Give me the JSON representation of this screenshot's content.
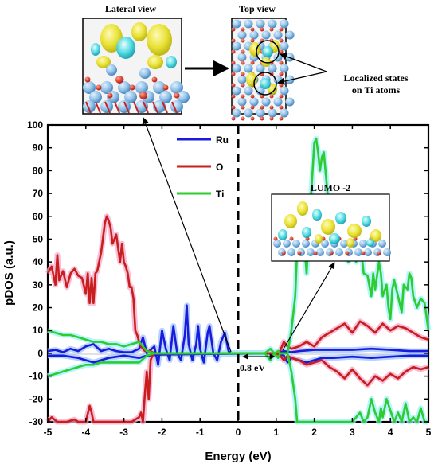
{
  "chart_data": {
    "type": "line",
    "xlabel": "Energy (eV)",
    "ylabel": "pDOS (a.u.)",
    "xlim": [
      -5,
      5
    ],
    "ylim": [
      -30,
      100
    ],
    "xticks": [
      -5,
      -4,
      -3,
      -2,
      -1,
      0,
      1,
      2,
      3,
      4,
      5
    ],
    "yticks": [
      100,
      90,
      80,
      70,
      60,
      50,
      40,
      30,
      20,
      10,
      0,
      -10,
      -20,
      -30
    ],
    "grid": false,
    "legend_position": "top-left",
    "series": [
      {
        "name": "Ru",
        "color": "#1a1adb",
        "spin_up": [
          [
            -5,
            1
          ],
          [
            -4.8,
            1.5
          ],
          [
            -4.6,
            0.5
          ],
          [
            -4.4,
            2
          ],
          [
            -4.2,
            1
          ],
          [
            -4,
            3
          ],
          [
            -3.8,
            4
          ],
          [
            -3.6,
            1
          ],
          [
            -3.4,
            2
          ],
          [
            -3.2,
            1
          ],
          [
            -3,
            0.5
          ],
          [
            -2.8,
            0.5
          ],
          [
            -2.6,
            2
          ],
          [
            -2.5,
            7
          ],
          [
            -2.4,
            0
          ],
          [
            -2.2,
            3
          ],
          [
            -2.1,
            -5
          ],
          [
            -2,
            10
          ],
          [
            -1.9,
            2
          ],
          [
            -1.8,
            -3
          ],
          [
            -1.7,
            12
          ],
          [
            -1.6,
            0
          ],
          [
            -1.5,
            -3
          ],
          [
            -1.4,
            8
          ],
          [
            -1.35,
            21
          ],
          [
            -1.3,
            4
          ],
          [
            -1.2,
            -3
          ],
          [
            -1.1,
            4
          ],
          [
            -1.05,
            12
          ],
          [
            -1,
            2
          ],
          [
            -0.9,
            -4
          ],
          [
            -0.8,
            9
          ],
          [
            -0.75,
            12
          ],
          [
            -0.65,
            0
          ],
          [
            -0.55,
            -3
          ],
          [
            -0.45,
            5
          ],
          [
            -0.35,
            9
          ],
          [
            -0.25,
            1
          ],
          [
            -0.2,
            0
          ],
          [
            1,
            0
          ],
          [
            1.2,
            1
          ],
          [
            1.4,
            0.5
          ],
          [
            1.6,
            1
          ],
          [
            2,
            1.5
          ],
          [
            2.5,
            1.5
          ],
          [
            3,
            1.5
          ],
          [
            3.5,
            2
          ],
          [
            4,
            1.5
          ],
          [
            4.5,
            1
          ],
          [
            5,
            1
          ]
        ],
        "spin_down": [
          [
            -5,
            -1
          ],
          [
            -4.6,
            -1
          ],
          [
            -4.2,
            -2
          ],
          [
            -3.8,
            -4
          ],
          [
            -3.4,
            -2
          ],
          [
            -3,
            -1
          ],
          [
            -2.6,
            -2
          ],
          [
            -2.4,
            -1
          ],
          [
            -2,
            -0.5
          ],
          [
            1,
            0
          ],
          [
            1.2,
            -1
          ],
          [
            1.3,
            -4
          ],
          [
            1.4,
            -2
          ],
          [
            1.6,
            -3
          ],
          [
            1.8,
            -4
          ],
          [
            2,
            -3
          ],
          [
            2.2,
            -2
          ],
          [
            2.5,
            -2
          ],
          [
            3,
            -1.5
          ],
          [
            3.5,
            -2
          ],
          [
            4,
            -1.5
          ],
          [
            4.5,
            -1
          ],
          [
            5,
            -1
          ]
        ]
      },
      {
        "name": "O",
        "color": "#c81e1e",
        "spin_up": [
          [
            -5,
            35
          ],
          [
            -4.9,
            38
          ],
          [
            -4.8,
            30
          ],
          [
            -4.75,
            43
          ],
          [
            -4.7,
            32
          ],
          [
            -4.6,
            36
          ],
          [
            -4.5,
            29
          ],
          [
            -4.4,
            35
          ],
          [
            -4.3,
            37
          ],
          [
            -4.2,
            34
          ],
          [
            -4.1,
            33
          ],
          [
            -4,
            26
          ],
          [
            -3.95,
            35
          ],
          [
            -3.9,
            22
          ],
          [
            -3.85,
            33
          ],
          [
            -3.8,
            22
          ],
          [
            -3.75,
            35
          ],
          [
            -3.7,
            36
          ],
          [
            -3.6,
            44
          ],
          [
            -3.5,
            57
          ],
          [
            -3.45,
            60
          ],
          [
            -3.4,
            58
          ],
          [
            -3.35,
            55
          ],
          [
            -3.3,
            48
          ],
          [
            -3.2,
            52
          ],
          [
            -3.1,
            40
          ],
          [
            -3.05,
            48
          ],
          [
            -3,
            40
          ],
          [
            -2.95,
            38
          ],
          [
            -2.9,
            35
          ],
          [
            -2.85,
            29
          ],
          [
            -2.8,
            29
          ],
          [
            -2.75,
            24
          ],
          [
            -2.7,
            10
          ],
          [
            -2.65,
            8
          ],
          [
            -2.6,
            5
          ],
          [
            -2.55,
            3
          ],
          [
            -2.45,
            1
          ],
          [
            -2.3,
            1
          ],
          [
            -2.2,
            0
          ],
          [
            1,
            0
          ],
          [
            1.1,
            1
          ],
          [
            1.2,
            5
          ],
          [
            1.3,
            3
          ],
          [
            1.4,
            2
          ],
          [
            1.6,
            3
          ],
          [
            1.8,
            5
          ],
          [
            2,
            3
          ],
          [
            2.2,
            7
          ],
          [
            2.4,
            9
          ],
          [
            2.6,
            11
          ],
          [
            2.8,
            13
          ],
          [
            3,
            9
          ],
          [
            3.2,
            14
          ],
          [
            3.4,
            12
          ],
          [
            3.6,
            9
          ],
          [
            3.8,
            13
          ],
          [
            4,
            10
          ],
          [
            4.2,
            12
          ],
          [
            4.4,
            11
          ],
          [
            4.6,
            9
          ],
          [
            4.8,
            7
          ],
          [
            5,
            6
          ]
        ],
        "spin_down": [
          [
            -5,
            -30
          ],
          [
            -4.9,
            -28
          ],
          [
            -4.75,
            -30
          ],
          [
            -4.5,
            -30
          ],
          [
            -4.3,
            -29
          ],
          [
            -4.2,
            -30
          ],
          [
            -4,
            -30
          ],
          [
            -3.9,
            -23
          ],
          [
            -3.85,
            -26
          ],
          [
            -3.8,
            -30
          ],
          [
            -3.5,
            -30
          ],
          [
            -3.2,
            -30
          ],
          [
            -3,
            -30
          ],
          [
            -2.8,
            -30
          ],
          [
            -2.6,
            -28
          ],
          [
            -2.55,
            -26
          ],
          [
            -2.5,
            -30
          ],
          [
            -2.45,
            -18
          ],
          [
            -2.4,
            -8
          ],
          [
            -2.35,
            -20
          ],
          [
            -2.3,
            -3
          ],
          [
            -2.25,
            -1
          ],
          [
            -2.2,
            0
          ],
          [
            1,
            0
          ],
          [
            1.1,
            -1
          ],
          [
            1.2,
            -3
          ],
          [
            1.3,
            -1
          ],
          [
            1.4,
            -2
          ],
          [
            1.6,
            -3
          ],
          [
            1.8,
            -5
          ],
          [
            2,
            -4
          ],
          [
            2.2,
            -3
          ],
          [
            2.4,
            -6
          ],
          [
            2.6,
            -8
          ],
          [
            2.8,
            -11
          ],
          [
            3,
            -7
          ],
          [
            3.2,
            -11
          ],
          [
            3.4,
            -14
          ],
          [
            3.6,
            -10
          ],
          [
            3.8,
            -12
          ],
          [
            4,
            -9
          ],
          [
            4.2,
            -11
          ],
          [
            4.4,
            -8
          ],
          [
            4.6,
            -6
          ],
          [
            4.8,
            -7
          ],
          [
            5,
            -6
          ]
        ]
      },
      {
        "name": "Ti",
        "color": "#2ecc2e",
        "spin_up": [
          [
            -5,
            10
          ],
          [
            -4.8,
            9
          ],
          [
            -4.6,
            8
          ],
          [
            -4.4,
            8
          ],
          [
            -4.2,
            7
          ],
          [
            -4,
            6
          ],
          [
            -3.8,
            5
          ],
          [
            -3.6,
            5
          ],
          [
            -3.4,
            4
          ],
          [
            -3.2,
            4
          ],
          [
            -3,
            3
          ],
          [
            -2.8,
            4
          ],
          [
            -2.6,
            5
          ],
          [
            -2.4,
            1
          ],
          [
            -2.2,
            0
          ],
          [
            -0.5,
            0
          ],
          [
            0,
            0
          ],
          [
            0.7,
            0
          ],
          [
            0.85,
            2
          ],
          [
            0.95,
            0
          ],
          [
            1.05,
            1
          ],
          [
            1.1,
            0
          ],
          [
            1.3,
            0
          ],
          [
            1.4,
            10
          ],
          [
            1.5,
            25
          ],
          [
            1.55,
            45
          ],
          [
            1.6,
            55
          ],
          [
            1.65,
            42
          ],
          [
            1.7,
            55
          ],
          [
            1.8,
            35
          ],
          [
            1.85,
            50
          ],
          [
            1.9,
            65
          ],
          [
            1.95,
            78
          ],
          [
            2,
            92
          ],
          [
            2.05,
            94
          ],
          [
            2.1,
            88
          ],
          [
            2.15,
            80
          ],
          [
            2.2,
            86
          ],
          [
            2.25,
            88
          ],
          [
            2.35,
            70
          ],
          [
            2.45,
            52
          ],
          [
            2.5,
            62
          ],
          [
            2.6,
            48
          ],
          [
            2.7,
            55
          ],
          [
            2.8,
            42
          ],
          [
            2.9,
            40
          ],
          [
            3,
            58
          ],
          [
            3.05,
            45
          ],
          [
            3.1,
            40
          ],
          [
            3.2,
            50
          ],
          [
            3.3,
            35
          ],
          [
            3.4,
            34
          ],
          [
            3.5,
            25
          ],
          [
            3.55,
            35
          ],
          [
            3.6,
            28
          ],
          [
            3.7,
            40
          ],
          [
            3.75,
            35
          ],
          [
            3.8,
            25
          ],
          [
            3.9,
            30
          ],
          [
            3.95,
            20
          ],
          [
            4,
            15
          ],
          [
            4.05,
            28
          ],
          [
            4.1,
            32
          ],
          [
            4.2,
            25
          ],
          [
            4.3,
            18
          ],
          [
            4.35,
            30
          ],
          [
            4.45,
            28
          ],
          [
            4.5,
            35
          ],
          [
            4.55,
            33
          ],
          [
            4.6,
            25
          ],
          [
            4.7,
            20
          ],
          [
            4.8,
            24
          ],
          [
            4.9,
            22
          ],
          [
            5,
            10
          ]
        ],
        "spin_down": [
          [
            -5,
            -10
          ],
          [
            -4.8,
            -9
          ],
          [
            -4.6,
            -8
          ],
          [
            -4.4,
            -7
          ],
          [
            -4.2,
            -6
          ],
          [
            -4,
            -5
          ],
          [
            -3.8,
            -5
          ],
          [
            -3.6,
            -4
          ],
          [
            -3.4,
            -4
          ],
          [
            -3.2,
            -4
          ],
          [
            -3,
            -4
          ],
          [
            -2.8,
            -4
          ],
          [
            -2.6,
            -4
          ],
          [
            -2.4,
            -1
          ],
          [
            -2.2,
            0
          ],
          [
            -0.5,
            0
          ],
          [
            0,
            0
          ],
          [
            0.7,
            0
          ],
          [
            0.85,
            -3
          ],
          [
            0.95,
            0
          ],
          [
            1.05,
            -2
          ],
          [
            1.1,
            0
          ],
          [
            1.3,
            0
          ],
          [
            1.4,
            -8
          ],
          [
            1.5,
            -20
          ],
          [
            1.55,
            -30
          ],
          [
            1.6,
            -30
          ],
          [
            1.8,
            -30
          ],
          [
            2,
            -30
          ],
          [
            2.2,
            -30
          ],
          [
            2.4,
            -30
          ],
          [
            2.6,
            -30
          ],
          [
            2.8,
            -30
          ],
          [
            3,
            -30
          ],
          [
            3.1,
            -28
          ],
          [
            3.2,
            -26
          ],
          [
            3.3,
            -30
          ],
          [
            3.4,
            -28
          ],
          [
            3.5,
            -20
          ],
          [
            3.6,
            -26
          ],
          [
            3.7,
            -30
          ],
          [
            3.75,
            -24
          ],
          [
            3.8,
            -28
          ],
          [
            3.9,
            -20
          ],
          [
            4,
            -25
          ],
          [
            4.1,
            -30
          ],
          [
            4.2,
            -26
          ],
          [
            4.3,
            -30
          ],
          [
            4.4,
            -22
          ],
          [
            4.5,
            -30
          ],
          [
            4.6,
            -28
          ],
          [
            4.7,
            -30
          ],
          [
            4.8,
            -24
          ],
          [
            4.9,
            -30
          ],
          [
            5,
            -30
          ]
        ]
      }
    ],
    "annotations": {
      "gap_label": "0.8 eV",
      "lumo_label": "LUMO -2",
      "lateral_view": "Lateral view",
      "top_view": "Top view",
      "localized_line1": "Localized states",
      "localized_line2": "on Ti atoms"
    }
  }
}
